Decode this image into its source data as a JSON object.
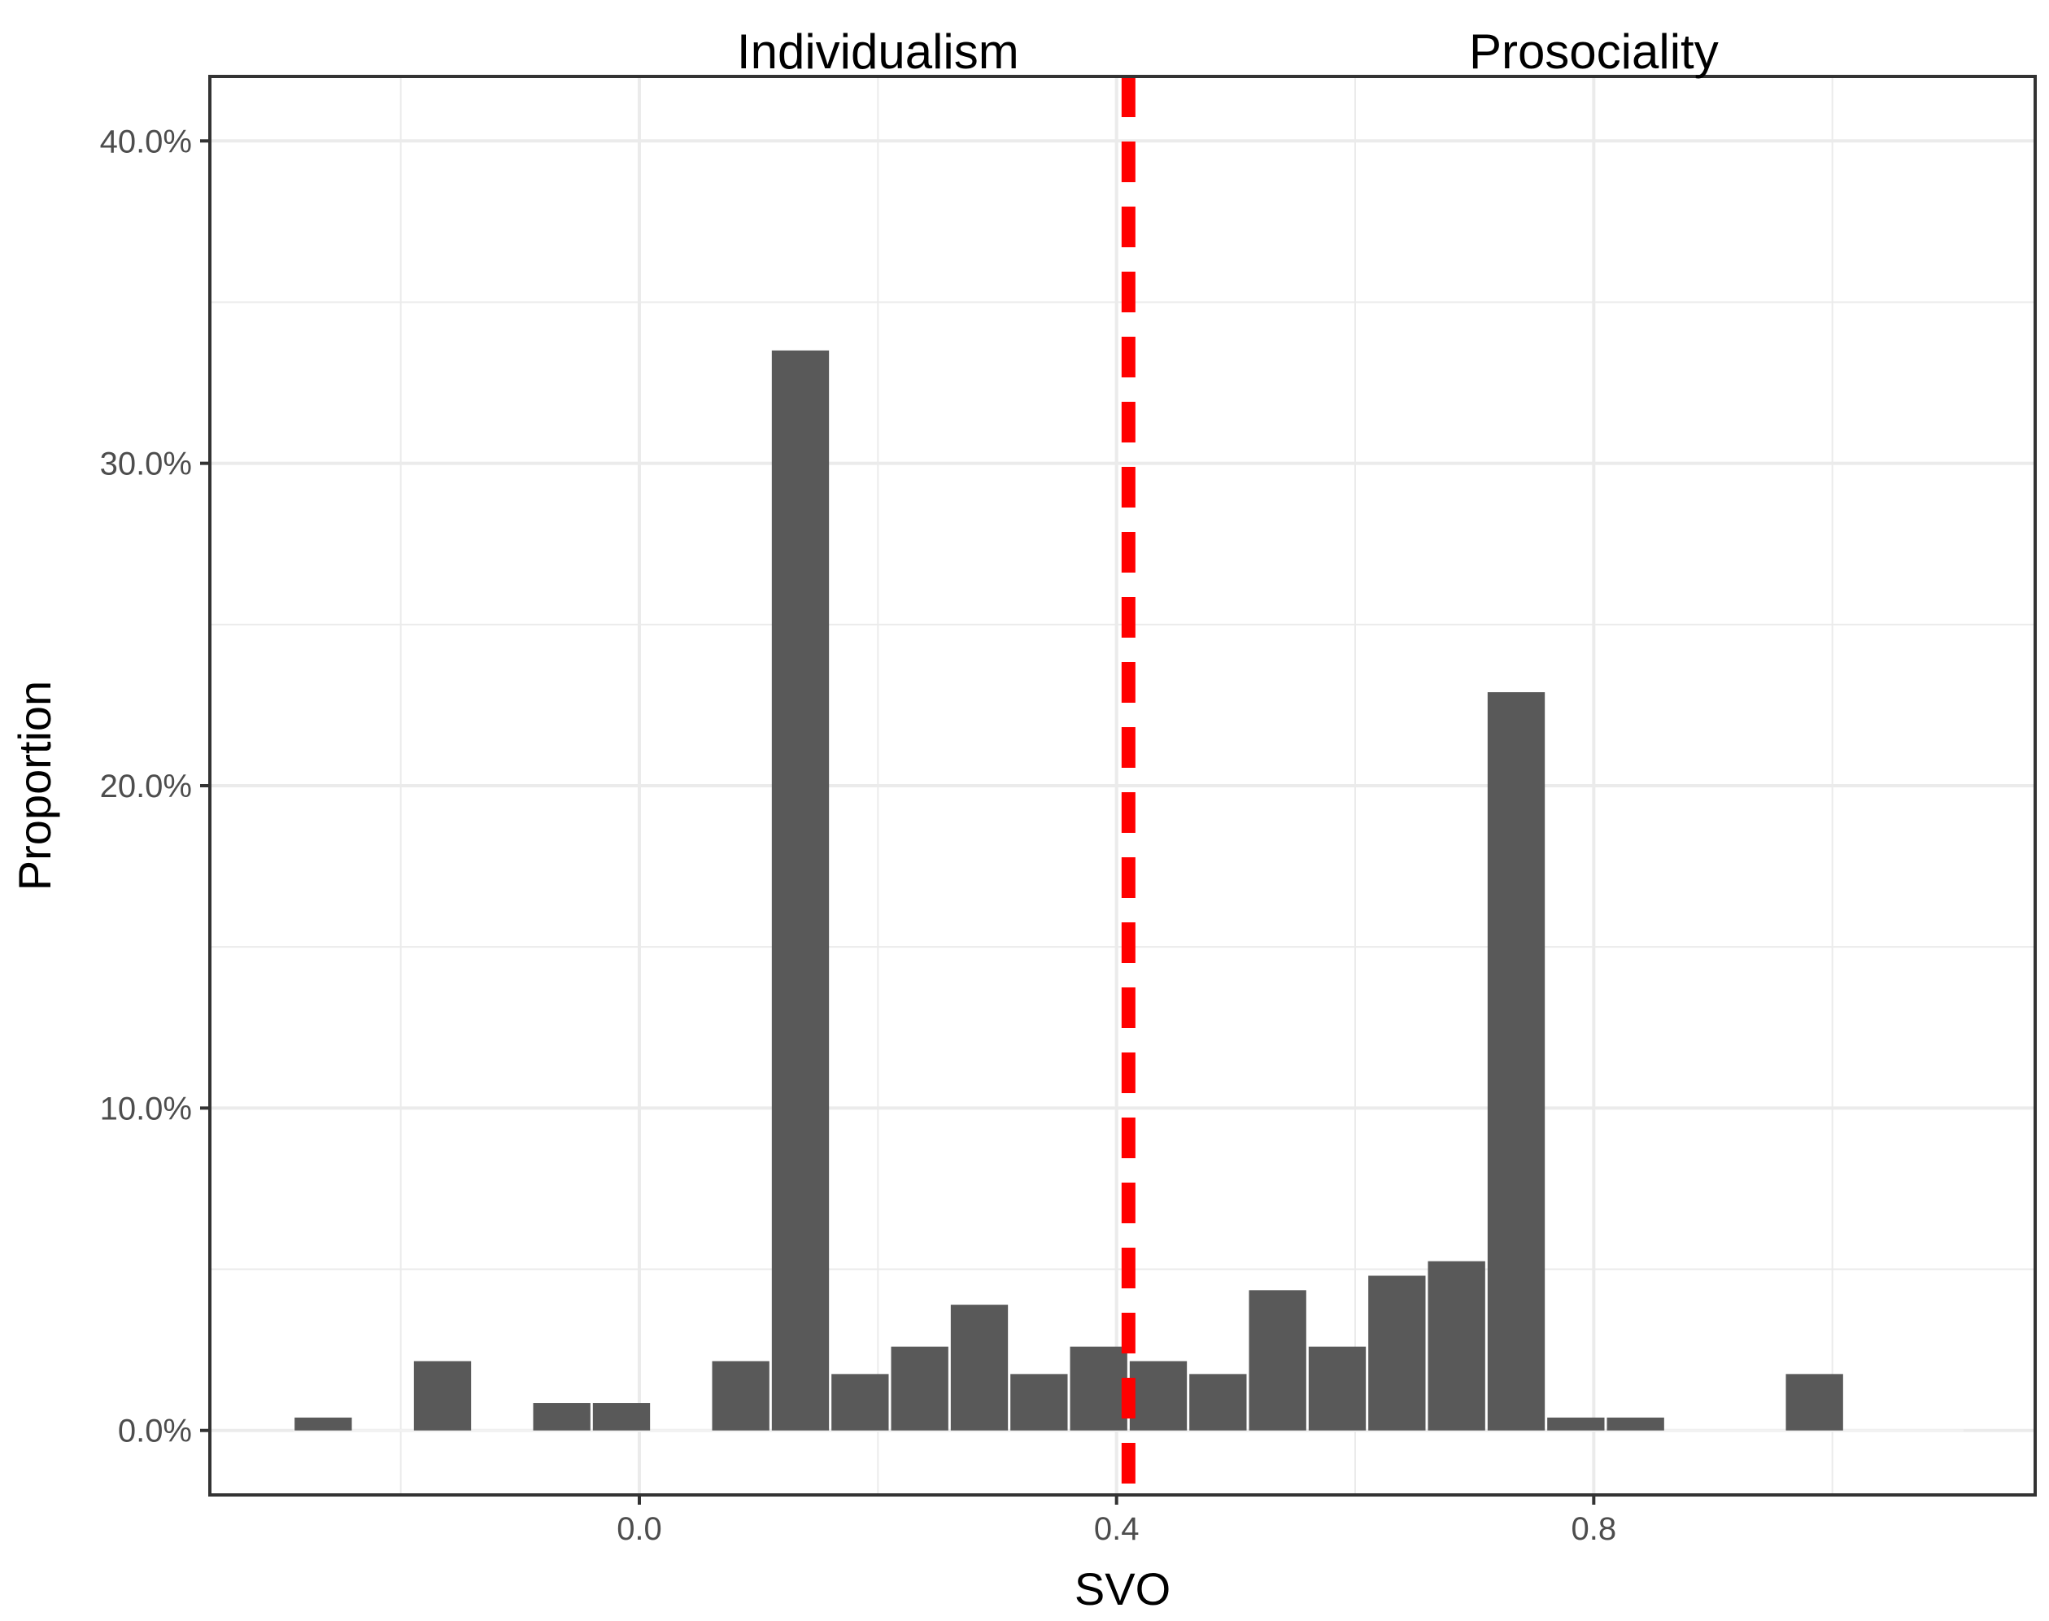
{
  "chart_data": {
    "type": "bar",
    "title": "",
    "xlabel": "SVO",
    "ylabel": "Proportion",
    "xlim": [
      -0.36,
      1.17
    ],
    "ylim": [
      -0.02,
      0.42
    ],
    "x_ticks": [
      0.0,
      0.4,
      0.8
    ],
    "x_tick_labels": [
      "0.0",
      "0.4",
      "0.8"
    ],
    "y_ticks": [
      0.0,
      0.1,
      0.2,
      0.3,
      0.4
    ],
    "y_tick_labels": [
      "0.0%",
      "10.0%",
      "20.0%",
      "30.0%",
      "40.0%"
    ],
    "grid": true,
    "bin_width": 0.05,
    "bins": [
      {
        "x": -0.265,
        "value": 0.004
      },
      {
        "x": -0.165,
        "value": 0.0215
      },
      {
        "x": -0.065,
        "value": 0.0085
      },
      {
        "x": -0.015,
        "value": 0.0085
      },
      {
        "x": 0.085,
        "value": 0.0215
      },
      {
        "x": 0.135,
        "value": 0.335
      },
      {
        "x": 0.185,
        "value": 0.0175
      },
      {
        "x": 0.235,
        "value": 0.026
      },
      {
        "x": 0.285,
        "value": 0.039
      },
      {
        "x": 0.335,
        "value": 0.0175
      },
      {
        "x": 0.385,
        "value": 0.026
      },
      {
        "x": 0.435,
        "value": 0.0215
      },
      {
        "x": 0.485,
        "value": 0.0175
      },
      {
        "x": 0.535,
        "value": 0.0435
      },
      {
        "x": 0.585,
        "value": 0.026
      },
      {
        "x": 0.635,
        "value": 0.048
      },
      {
        "x": 0.685,
        "value": 0.0525
      },
      {
        "x": 0.735,
        "value": 0.229
      },
      {
        "x": 0.785,
        "value": 0.004
      },
      {
        "x": 0.835,
        "value": 0.004
      },
      {
        "x": 0.985,
        "value": 0.0175
      }
    ],
    "threshold_line": {
      "x": 0.41,
      "color": "#ff0000",
      "style": "dashed"
    },
    "annotations": [
      {
        "text": "Individualism",
        "x": 0.2
      },
      {
        "text": "Prosociality",
        "x": 0.8
      }
    ],
    "bar_color": "#595959",
    "panel_border_color": "#333333",
    "grid_color": "#ebebeb"
  }
}
